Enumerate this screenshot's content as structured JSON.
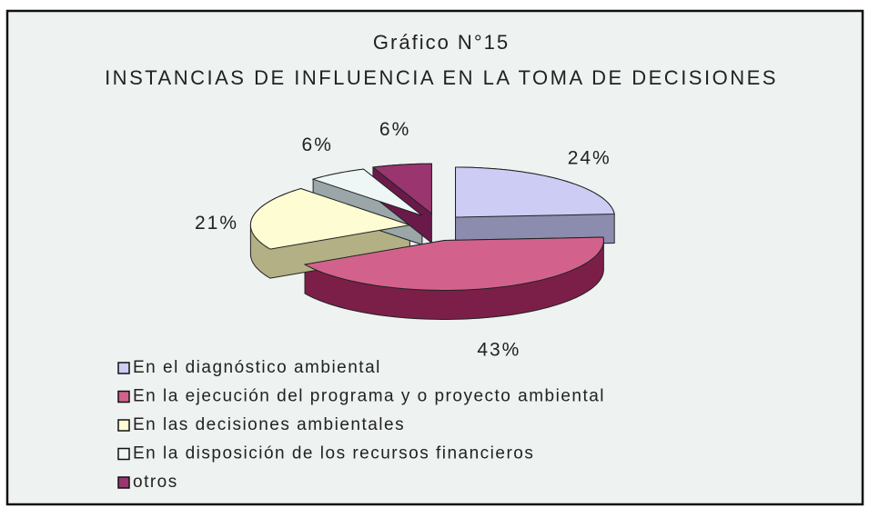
{
  "chart_data": {
    "type": "pie",
    "title": "Gráfico N°15",
    "subtitle": "INSTANCIAS DE INFLUENCIA EN LA TOMA DE DECISIONES",
    "categories": [
      "En el diagnóstico ambiental",
      "En la ejecución del programa y o proyecto ambiental",
      "En las decisiones ambientales",
      "En la disposición de los recursos financieros",
      "otros"
    ],
    "values": [
      24,
      43,
      21,
      6,
      6
    ],
    "value_labels": [
      "24%",
      "43%",
      "21%",
      "6%",
      "6%"
    ],
    "colors": [
      "#ccccf4",
      "#d2628c",
      "#fdfcd2",
      "#eef6f6",
      "#9a3570"
    ],
    "side_colors": [
      "#8c8cae",
      "#7c1f48",
      "#b2b084",
      "#9aa6a8",
      "#6a1a4a"
    ],
    "legend": "bottom-left"
  }
}
